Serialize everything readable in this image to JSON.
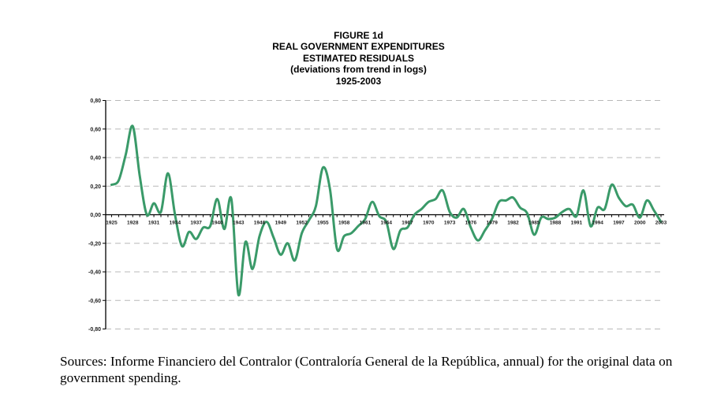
{
  "figure": {
    "title_lines": [
      "FIGURE 1d",
      "REAL GOVERNMENT EXPENDITURES",
      "ESTIMATED RESIDUALS",
      "(deviations from trend in logs)",
      "1925-2003"
    ]
  },
  "caption": "Sources: Informe Financiero del Contralor (Contraloría General de la República, annual) for the original data on government spending.",
  "colors": {
    "line": "#3a9a69",
    "grid": "#b8b8b8",
    "axis": "#000000"
  },
  "chart_data": {
    "type": "line",
    "title": "FIGURE 1d — REAL GOVERNMENT EXPENDITURES ESTIMATED RESIDUALS (deviations from trend in logs) 1925-2003",
    "xlabel": "",
    "ylabel": "",
    "xlim": [
      1925,
      2003
    ],
    "ylim": [
      -0.8,
      0.8
    ],
    "yticks": [
      0.8,
      0.6,
      0.4,
      0.2,
      0.0,
      -0.2,
      -0.4,
      -0.6,
      -0.8
    ],
    "ytick_labels": [
      "0,80",
      "0,60",
      "0,40",
      "0,20",
      "0,00",
      "-0,20",
      "-0,40",
      "-0,60",
      "-0,80"
    ],
    "xtick_labels": [
      "1925",
      "1928",
      "1931",
      "1934",
      "1937",
      "1940",
      "1943",
      "1946",
      "1949",
      "1952",
      "1955",
      "1958",
      "1961",
      "1964",
      "1967",
      "1970",
      "1973",
      "1976",
      "1979",
      "1982",
      "1985",
      "1988",
      "1991",
      "1994",
      "1997",
      "2000",
      "2003"
    ],
    "grid": true,
    "legend": "none",
    "series": [
      {
        "name": "Estimated residuals",
        "x": [
          1925,
          1926,
          1927,
          1928,
          1929,
          1930,
          1931,
          1932,
          1933,
          1934,
          1935,
          1936,
          1937,
          1938,
          1939,
          1940,
          1941,
          1942,
          1943,
          1944,
          1945,
          1946,
          1947,
          1948,
          1949,
          1950,
          1951,
          1952,
          1953,
          1954,
          1955,
          1956,
          1957,
          1958,
          1959,
          1960,
          1961,
          1962,
          1963,
          1964,
          1965,
          1966,
          1967,
          1968,
          1969,
          1970,
          1971,
          1972,
          1973,
          1974,
          1975,
          1976,
          1977,
          1978,
          1979,
          1980,
          1981,
          1982,
          1983,
          1984,
          1985,
          1986,
          1987,
          1988,
          1989,
          1990,
          1991,
          1992,
          1993,
          1994,
          1995,
          1996,
          1997,
          1998,
          1999,
          2000,
          2001,
          2002,
          2003
        ],
        "values": [
          0.21,
          0.24,
          0.42,
          0.62,
          0.27,
          0.0,
          0.08,
          0.02,
          0.29,
          0.0,
          -0.22,
          -0.12,
          -0.17,
          -0.09,
          -0.08,
          0.11,
          -0.1,
          0.11,
          -0.56,
          -0.19,
          -0.38,
          -0.15,
          -0.05,
          -0.16,
          -0.28,
          -0.2,
          -0.32,
          -0.13,
          -0.04,
          0.06,
          0.33,
          0.18,
          -0.24,
          -0.15,
          -0.13,
          -0.08,
          -0.03,
          0.09,
          -0.01,
          -0.05,
          -0.24,
          -0.11,
          -0.09,
          0.0,
          0.04,
          0.09,
          0.11,
          0.17,
          0.02,
          -0.02,
          0.04,
          -0.09,
          -0.18,
          -0.11,
          -0.03,
          0.09,
          0.1,
          0.12,
          0.05,
          0.01,
          -0.14,
          -0.02,
          -0.03,
          -0.02,
          0.02,
          0.04,
          -0.01,
          0.17,
          -0.08,
          0.05,
          0.04,
          0.21,
          0.12,
          0.06,
          0.07,
          -0.02,
          0.1,
          0.03,
          -0.05
        ]
      }
    ]
  }
}
